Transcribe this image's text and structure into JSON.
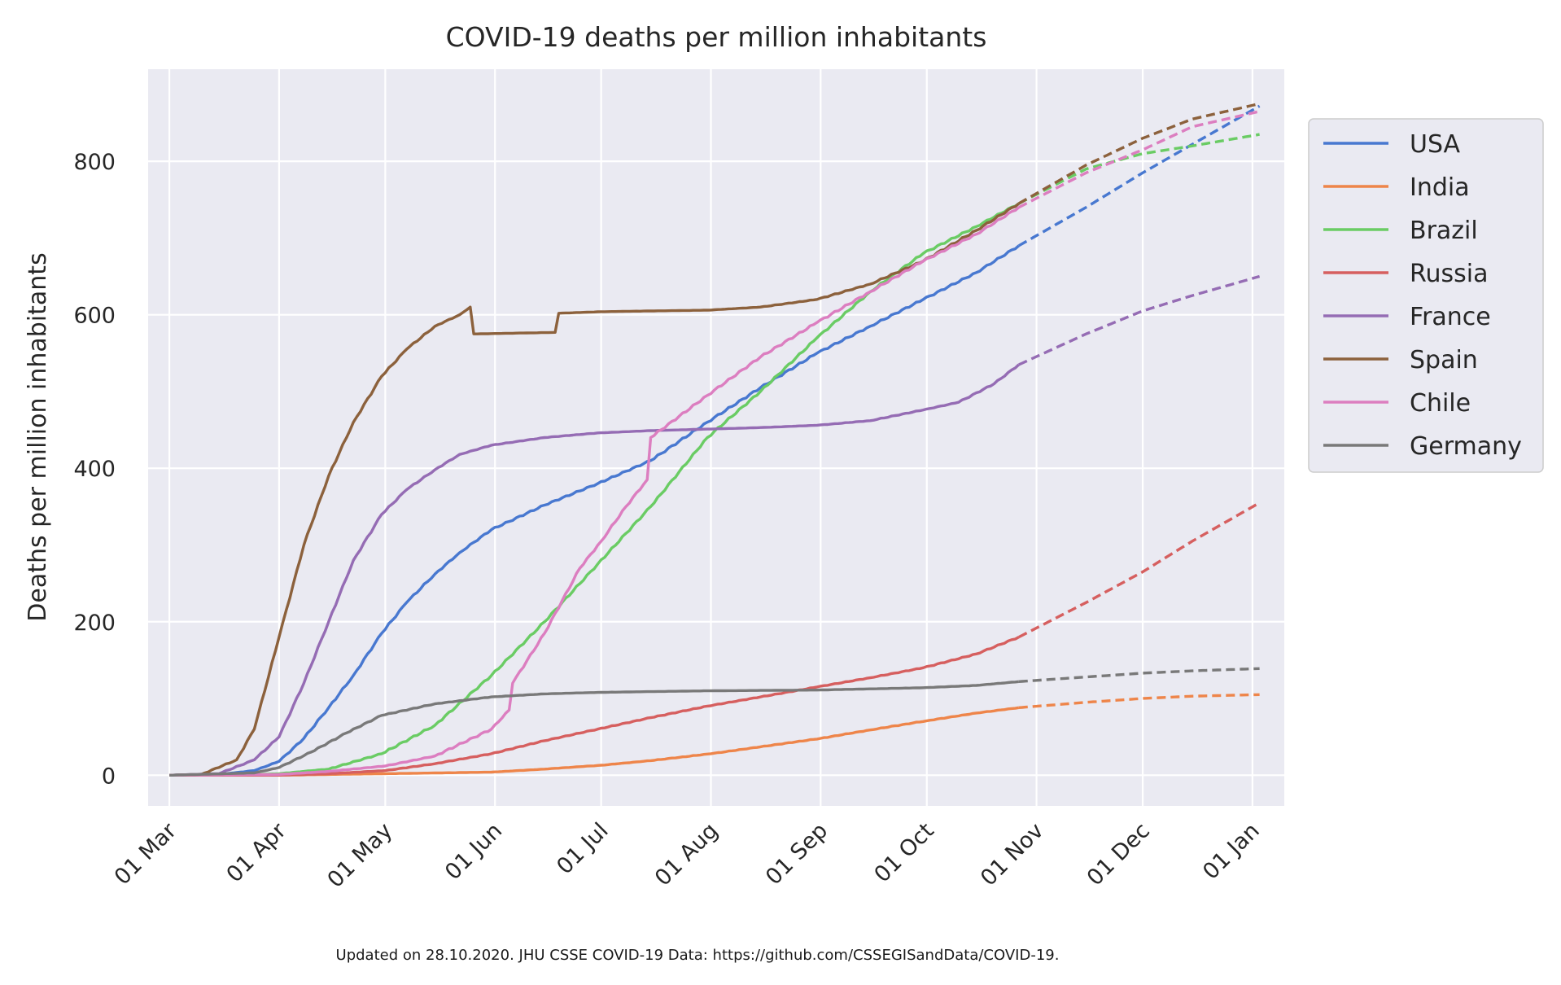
{
  "chart_data": {
    "type": "line",
    "title": "COVID-19 deaths per million inhabitants",
    "ylabel": "Deaths per million inhabitants",
    "xlabel": "",
    "footnote": "Updated on 28.10.2020. JHU CSSE COVID-19 Data: https://github.com/CSSEGISandData/COVID-19.",
    "x_axis": {
      "start": "2020-02-24",
      "end": "2021-01-10",
      "ticks": [
        "2020-03-01",
        "2020-04-01",
        "2020-05-01",
        "2020-06-01",
        "2020-07-01",
        "2020-08-01",
        "2020-09-01",
        "2020-10-01",
        "2020-11-01",
        "2020-12-01",
        "2021-01-01"
      ],
      "tick_labels": [
        "01 Mar",
        "01 Apr",
        "01 May",
        "01 Jun",
        "01 Jul",
        "01 Aug",
        "01 Sep",
        "01 Oct",
        "01 Nov",
        "01 Dec",
        "01 Jan"
      ]
    },
    "ylim": [
      -40,
      920
    ],
    "yticks": [
      0,
      200,
      400,
      600,
      800
    ],
    "grid": true,
    "legend_position": "right",
    "actual_end": "2020-10-27",
    "forecast_end": "2021-01-03",
    "series": [
      {
        "name": "USA",
        "color": "#4878d0",
        "actual": [
          [
            "2020-03-01",
            0
          ],
          [
            "2020-03-15",
            1
          ],
          [
            "2020-03-25",
            6
          ],
          [
            "2020-04-01",
            18
          ],
          [
            "2020-04-08",
            48
          ],
          [
            "2020-04-15",
            88
          ],
          [
            "2020-04-22",
            130
          ],
          [
            "2020-04-30",
            185
          ],
          [
            "2020-05-07",
            225
          ],
          [
            "2020-05-15",
            262
          ],
          [
            "2020-05-22",
            290
          ],
          [
            "2020-05-31",
            320
          ],
          [
            "2020-06-15",
            352
          ],
          [
            "2020-06-30",
            380
          ],
          [
            "2020-07-15",
            410
          ],
          [
            "2020-07-31",
            460
          ],
          [
            "2020-08-15",
            505
          ],
          [
            "2020-08-31",
            550
          ],
          [
            "2020-09-15",
            585
          ],
          [
            "2020-09-30",
            620
          ],
          [
            "2020-10-15",
            655
          ],
          [
            "2020-10-27",
            690
          ]
        ],
        "forecast": [
          [
            "2020-10-27",
            690
          ],
          [
            "2020-11-15",
            740
          ],
          [
            "2020-12-01",
            785
          ],
          [
            "2020-12-15",
            822
          ],
          [
            "2021-01-03",
            872
          ]
        ]
      },
      {
        "name": "India",
        "color": "#ee854a",
        "actual": [
          [
            "2020-03-01",
            0
          ],
          [
            "2020-04-01",
            0
          ],
          [
            "2020-05-01",
            2
          ],
          [
            "2020-05-31",
            4
          ],
          [
            "2020-06-15",
            8
          ],
          [
            "2020-07-01",
            13
          ],
          [
            "2020-07-15",
            19
          ],
          [
            "2020-08-01",
            28
          ],
          [
            "2020-08-15",
            37
          ],
          [
            "2020-09-01",
            48
          ],
          [
            "2020-09-15",
            59
          ],
          [
            "2020-10-01",
            71
          ],
          [
            "2020-10-15",
            81
          ],
          [
            "2020-10-27",
            88
          ]
        ],
        "forecast": [
          [
            "2020-10-27",
            88
          ],
          [
            "2020-11-15",
            95
          ],
          [
            "2020-12-01",
            100
          ],
          [
            "2020-12-15",
            103
          ],
          [
            "2021-01-03",
            105
          ]
        ]
      },
      {
        "name": "Brazil",
        "color": "#6acc64",
        "actual": [
          [
            "2020-03-01",
            0
          ],
          [
            "2020-03-20",
            0
          ],
          [
            "2020-04-01",
            2
          ],
          [
            "2020-04-15",
            8
          ],
          [
            "2020-04-30",
            28
          ],
          [
            "2020-05-15",
            65
          ],
          [
            "2020-05-31",
            130
          ],
          [
            "2020-06-15",
            200
          ],
          [
            "2020-06-30",
            275
          ],
          [
            "2020-07-15",
            350
          ],
          [
            "2020-07-31",
            440
          ],
          [
            "2020-08-15",
            500
          ],
          [
            "2020-08-31",
            570
          ],
          [
            "2020-09-15",
            630
          ],
          [
            "2020-09-30",
            680
          ],
          [
            "2020-10-15",
            715
          ],
          [
            "2020-10-27",
            745
          ]
        ],
        "forecast": [
          [
            "2020-10-27",
            745
          ],
          [
            "2020-11-15",
            790
          ],
          [
            "2020-12-01",
            810
          ],
          [
            "2020-12-15",
            820
          ],
          [
            "2021-01-03",
            835
          ]
        ]
      },
      {
        "name": "Russia",
        "color": "#d65f5f",
        "actual": [
          [
            "2020-03-01",
            0
          ],
          [
            "2020-04-01",
            0
          ],
          [
            "2020-04-15",
            2
          ],
          [
            "2020-05-01",
            6
          ],
          [
            "2020-05-15",
            15
          ],
          [
            "2020-05-31",
            28
          ],
          [
            "2020-06-15",
            45
          ],
          [
            "2020-06-30",
            60
          ],
          [
            "2020-07-15",
            75
          ],
          [
            "2020-07-31",
            90
          ],
          [
            "2020-08-15",
            102
          ],
          [
            "2020-08-31",
            115
          ],
          [
            "2020-09-15",
            127
          ],
          [
            "2020-09-30",
            140
          ],
          [
            "2020-10-15",
            158
          ],
          [
            "2020-10-27",
            180
          ]
        ],
        "forecast": [
          [
            "2020-10-27",
            180
          ],
          [
            "2020-11-15",
            225
          ],
          [
            "2020-12-01",
            265
          ],
          [
            "2020-12-15",
            305
          ],
          [
            "2021-01-03",
            355
          ]
        ]
      },
      {
        "name": "France",
        "color": "#956cb4",
        "actual": [
          [
            "2020-03-01",
            0
          ],
          [
            "2020-03-15",
            2
          ],
          [
            "2020-03-25",
            20
          ],
          [
            "2020-04-01",
            50
          ],
          [
            "2020-04-08",
            120
          ],
          [
            "2020-04-15",
            200
          ],
          [
            "2020-04-22",
            280
          ],
          [
            "2020-04-30",
            340
          ],
          [
            "2020-05-07",
            372
          ],
          [
            "2020-05-15",
            398
          ],
          [
            "2020-05-22",
            418
          ],
          [
            "2020-05-31",
            430
          ],
          [
            "2020-06-15",
            440
          ],
          [
            "2020-06-30",
            446
          ],
          [
            "2020-07-15",
            449
          ],
          [
            "2020-07-31",
            451
          ],
          [
            "2020-08-15",
            453
          ],
          [
            "2020-08-31",
            456
          ],
          [
            "2020-09-15",
            462
          ],
          [
            "2020-09-30",
            476
          ],
          [
            "2020-10-10",
            486
          ],
          [
            "2020-10-20",
            510
          ],
          [
            "2020-10-27",
            535
          ]
        ],
        "forecast": [
          [
            "2020-10-27",
            535
          ],
          [
            "2020-11-15",
            575
          ],
          [
            "2020-12-01",
            605
          ],
          [
            "2020-12-15",
            625
          ],
          [
            "2021-01-03",
            650
          ]
        ]
      },
      {
        "name": "Spain",
        "color": "#8c613c",
        "actual": [
          [
            "2020-03-01",
            0
          ],
          [
            "2020-03-10",
            1
          ],
          [
            "2020-03-20",
            20
          ],
          [
            "2020-03-25",
            60
          ],
          [
            "2020-04-01",
            180
          ],
          [
            "2020-04-08",
            300
          ],
          [
            "2020-04-15",
            390
          ],
          [
            "2020-04-22",
            460
          ],
          [
            "2020-04-30",
            520
          ],
          [
            "2020-05-07",
            555
          ],
          [
            "2020-05-15",
            585
          ],
          [
            "2020-05-22",
            600
          ],
          [
            "2020-05-25",
            610
          ],
          [
            "2020-05-26",
            575
          ],
          [
            "2020-06-18",
            577
          ],
          [
            "2020-06-19",
            602
          ],
          [
            "2020-07-01",
            604
          ],
          [
            "2020-07-31",
            606
          ],
          [
            "2020-08-15",
            610
          ],
          [
            "2020-08-31",
            620
          ],
          [
            "2020-09-15",
            640
          ],
          [
            "2020-09-30",
            670
          ],
          [
            "2020-10-15",
            710
          ],
          [
            "2020-10-27",
            745
          ]
        ],
        "forecast": [
          [
            "2020-10-27",
            745
          ],
          [
            "2020-11-15",
            795
          ],
          [
            "2020-12-01",
            830
          ],
          [
            "2020-12-15",
            855
          ],
          [
            "2021-01-03",
            875
          ]
        ]
      },
      {
        "name": "Chile",
        "color": "#dc7ec0",
        "actual": [
          [
            "2020-03-01",
            0
          ],
          [
            "2020-04-01",
            1
          ],
          [
            "2020-04-15",
            5
          ],
          [
            "2020-05-01",
            12
          ],
          [
            "2020-05-15",
            25
          ],
          [
            "2020-05-31",
            60
          ],
          [
            "2020-06-05",
            85
          ],
          [
            "2020-06-06",
            120
          ],
          [
            "2020-06-15",
            185
          ],
          [
            "2020-06-25",
            270
          ],
          [
            "2020-07-01",
            305
          ],
          [
            "2020-07-08",
            350
          ],
          [
            "2020-07-14",
            385
          ],
          [
            "2020-07-15",
            440
          ],
          [
            "2020-07-31",
            495
          ],
          [
            "2020-08-15",
            545
          ],
          [
            "2020-08-31",
            590
          ],
          [
            "2020-09-15",
            630
          ],
          [
            "2020-09-30",
            670
          ],
          [
            "2020-10-15",
            705
          ],
          [
            "2020-10-27",
            740
          ]
        ],
        "forecast": [
          [
            "2020-10-27",
            740
          ],
          [
            "2020-11-15",
            785
          ],
          [
            "2020-12-01",
            815
          ],
          [
            "2020-12-15",
            845
          ],
          [
            "2021-01-03",
            865
          ]
        ]
      },
      {
        "name": "Germany",
        "color": "#797979",
        "actual": [
          [
            "2020-03-01",
            0
          ],
          [
            "2020-03-25",
            3
          ],
          [
            "2020-04-01",
            10
          ],
          [
            "2020-04-10",
            30
          ],
          [
            "2020-04-20",
            55
          ],
          [
            "2020-04-30",
            78
          ],
          [
            "2020-05-15",
            93
          ],
          [
            "2020-05-31",
            102
          ],
          [
            "2020-06-15",
            106
          ],
          [
            "2020-07-01",
            108
          ],
          [
            "2020-07-31",
            110
          ],
          [
            "2020-08-31",
            111
          ],
          [
            "2020-09-30",
            114
          ],
          [
            "2020-10-15",
            117
          ],
          [
            "2020-10-27",
            122
          ]
        ],
        "forecast": [
          [
            "2020-10-27",
            122
          ],
          [
            "2020-11-15",
            128
          ],
          [
            "2020-12-01",
            133
          ],
          [
            "2020-12-15",
            136
          ],
          [
            "2021-01-03",
            139
          ]
        ]
      }
    ]
  }
}
